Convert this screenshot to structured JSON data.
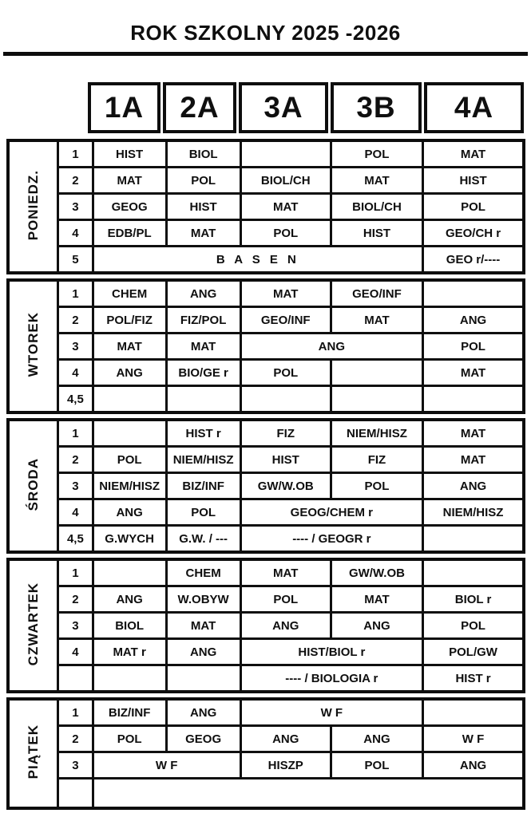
{
  "title": "ROK SZKOLNY 2025 -2026",
  "header": {
    "classes": [
      "1A",
      "2A",
      "3A",
      "3B",
      "4A"
    ]
  },
  "colors": {
    "border": "#0d0d0d",
    "text": "#0f0f0f",
    "background": "#ffffff",
    "blocked_slot": "#a9aeb4"
  },
  "days": [
    {
      "label": "PONIEDZ.",
      "rows": [
        {
          "period": "1",
          "cells": [
            {
              "text": "HIST"
            },
            {
              "text": "BIOL"
            },
            {
              "text": "",
              "shaded": true
            },
            {
              "text": "POL"
            },
            {
              "text": "MAT"
            }
          ]
        },
        {
          "period": "2",
          "cells": [
            {
              "text": "MAT"
            },
            {
              "text": "POL"
            },
            {
              "text": "BIOL/CH"
            },
            {
              "text": "MAT"
            },
            {
              "text": "HIST"
            }
          ]
        },
        {
          "period": "3",
          "cells": [
            {
              "text": "GEOG"
            },
            {
              "text": "HIST"
            },
            {
              "text": "MAT"
            },
            {
              "text": "BIOL/CH"
            },
            {
              "text": "POL"
            }
          ]
        },
        {
          "period": "4",
          "cells": [
            {
              "text": "EDB/PL"
            },
            {
              "text": "MAT"
            },
            {
              "text": "POL"
            },
            {
              "text": "HIST"
            },
            {
              "text": "GEO/CH r"
            }
          ]
        },
        {
          "period": "5",
          "cells": [
            {
              "text": "B A S E N",
              "span": 4
            },
            {
              "text": "GEO r/----"
            }
          ]
        }
      ]
    },
    {
      "label": "WTOREK",
      "rows": [
        {
          "period": "1",
          "cells": [
            {
              "text": "CHEM"
            },
            {
              "text": "ANG"
            },
            {
              "text": "MAT"
            },
            {
              "text": "GEO/INF"
            },
            {
              "text": "",
              "shaded": true
            }
          ]
        },
        {
          "period": "2",
          "cells": [
            {
              "text": "POL/FIZ"
            },
            {
              "text": "FIZ/POL"
            },
            {
              "text": "GEO/INF"
            },
            {
              "text": "MAT"
            },
            {
              "text": "ANG"
            }
          ]
        },
        {
          "period": "3",
          "cells": [
            {
              "text": "MAT"
            },
            {
              "text": "MAT"
            },
            {
              "text": "ANG",
              "span": 2
            },
            {
              "text": "POL"
            }
          ]
        },
        {
          "period": "4",
          "cells": [
            {
              "text": "ANG"
            },
            {
              "text": "BIO/GE r"
            },
            {
              "text": "POL"
            },
            {
              "text": ""
            },
            {
              "text": "MAT"
            }
          ]
        },
        {
          "period": "4,5",
          "cells": [
            {
              "text": ""
            },
            {
              "text": ""
            },
            {
              "text": ""
            },
            {
              "text": ""
            },
            {
              "text": ""
            }
          ]
        }
      ]
    },
    {
      "label": "ŚRODA",
      "rows": [
        {
          "period": "1",
          "cells": [
            {
              "text": "",
              "shaded": true
            },
            {
              "text": "HIST r"
            },
            {
              "text": "FIZ"
            },
            {
              "text": "NIEM/HISZ"
            },
            {
              "text": "MAT"
            }
          ]
        },
        {
          "period": "2",
          "cells": [
            {
              "text": "POL"
            },
            {
              "text": "NIEM/HISZ"
            },
            {
              "text": "HIST"
            },
            {
              "text": "FIZ"
            },
            {
              "text": "MAT"
            }
          ]
        },
        {
          "period": "3",
          "cells": [
            {
              "text": "NIEM/HISZ"
            },
            {
              "text": "BIZ/INF"
            },
            {
              "text": "GW/W.OB"
            },
            {
              "text": "POL"
            },
            {
              "text": "ANG"
            }
          ]
        },
        {
          "period": "4",
          "cells": [
            {
              "text": "ANG"
            },
            {
              "text": "POL"
            },
            {
              "text": "GEOG/CHEM r",
              "span": 2
            },
            {
              "text": "NIEM/HISZ"
            }
          ]
        },
        {
          "period": "4,5",
          "cells": [
            {
              "text": "G.WYCH"
            },
            {
              "text": "G.W. / ---"
            },
            {
              "text": "---- / GEOGR r",
              "span": 2
            },
            {
              "text": ""
            }
          ]
        }
      ]
    },
    {
      "label": "CZWARTEK",
      "rows": [
        {
          "period": "1",
          "cells": [
            {
              "text": "",
              "shaded": true
            },
            {
              "text": "CHEM"
            },
            {
              "text": "MAT"
            },
            {
              "text": "GW/W.OB"
            },
            {
              "text": "",
              "shaded": true
            }
          ]
        },
        {
          "period": "2",
          "cells": [
            {
              "text": "ANG"
            },
            {
              "text": "W.OBYW"
            },
            {
              "text": "POL"
            },
            {
              "text": "MAT"
            },
            {
              "text": "BIOL r"
            }
          ]
        },
        {
          "period": "3",
          "cells": [
            {
              "text": "BIOL"
            },
            {
              "text": "MAT"
            },
            {
              "text": "ANG"
            },
            {
              "text": "ANG"
            },
            {
              "text": "POL"
            }
          ]
        },
        {
          "period": "4",
          "cells": [
            {
              "text": "MAT r"
            },
            {
              "text": "ANG"
            },
            {
              "text": "HIST/BIOL r",
              "span": 2
            },
            {
              "text": "POL/GW"
            }
          ]
        },
        {
          "period": "",
          "cells": [
            {
              "text": ""
            },
            {
              "text": ""
            },
            {
              "text": "---- / BIOLOGIA r",
              "span": 2
            },
            {
              "text": "HIST r"
            }
          ]
        }
      ]
    },
    {
      "label": "PIĄTEK",
      "rows": [
        {
          "period": "1",
          "cells": [
            {
              "text": "BIZ/INF"
            },
            {
              "text": "ANG"
            },
            {
              "text": "W F",
              "span": 2
            },
            {
              "text": "",
              "shaded": true
            }
          ]
        },
        {
          "period": "2",
          "cells": [
            {
              "text": "POL"
            },
            {
              "text": "GEOG"
            },
            {
              "text": "ANG"
            },
            {
              "text": "ANG"
            },
            {
              "text": "W F"
            }
          ]
        },
        {
          "period": "3",
          "cells": [
            {
              "text": "W F",
              "span": 2
            },
            {
              "text": "HISZP"
            },
            {
              "text": "POL"
            },
            {
              "text": "ANG"
            }
          ]
        },
        {
          "period": "",
          "cells": [
            {
              "text": "",
              "span": 5
            }
          ]
        }
      ]
    }
  ]
}
